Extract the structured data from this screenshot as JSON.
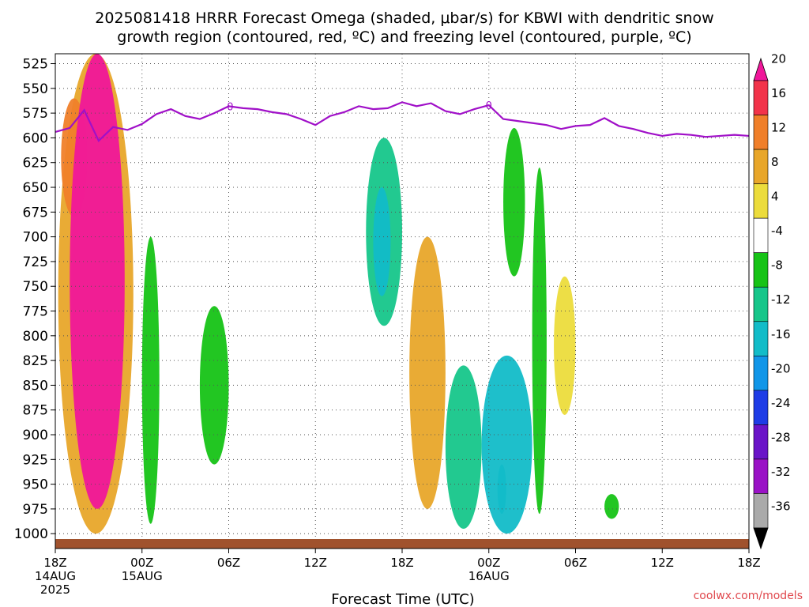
{
  "chart_data": {
    "type": "heatmap",
    "title": [
      "2025081418 HRRR Forecast Omega (shaded, μbar/s) for KBWI with dendritic snow",
      "growth region (contoured, red, ºC) and freezing level (contoured, purple, ºC)"
    ],
    "xlabel": "Forecast Time (UTC)",
    "ylabel": "",
    "credit": "coolwx.com/models",
    "x_ticks": [
      {
        "hour": 0,
        "lines": [
          "18Z",
          "14AUG",
          "2025"
        ]
      },
      {
        "hour": 6,
        "lines": [
          "00Z",
          "15AUG"
        ]
      },
      {
        "hour": 12,
        "lines": [
          "06Z"
        ]
      },
      {
        "hour": 18,
        "lines": [
          "12Z"
        ]
      },
      {
        "hour": 24,
        "lines": [
          "18Z"
        ]
      },
      {
        "hour": 30,
        "lines": [
          "00Z",
          "16AUG"
        ]
      },
      {
        "hour": 36,
        "lines": [
          "06Z"
        ]
      },
      {
        "hour": 42,
        "lines": [
          "12Z"
        ]
      },
      {
        "hour": 48,
        "lines": [
          "18Z"
        ]
      }
    ],
    "xlim": [
      0,
      48
    ],
    "y_ticks": [
      525,
      550,
      575,
      600,
      625,
      650,
      675,
      700,
      725,
      750,
      775,
      800,
      825,
      850,
      875,
      900,
      925,
      950,
      975,
      1000
    ],
    "ylim": [
      1015,
      515
    ],
    "grid": true,
    "colorbar": {
      "labels": [
        "20",
        "16",
        "12",
        "8",
        "4",
        "-4",
        "-8",
        "-12",
        "-16",
        "-20",
        "-24",
        "-28",
        "-32",
        "-36"
      ],
      "colors": [
        "#f0169a",
        "#f2334a",
        "#f07f2a",
        "#e8a62a",
        "#ecdc3c",
        "#ffffff",
        "#16c316",
        "#16c68a",
        "#12bcc8",
        "#1196e8",
        "#1e3ce6",
        "#6a14c8",
        "#9a12c6",
        "#aaaaaa",
        "#000000"
      ]
    },
    "freezing_level": {
      "label": "0",
      "color": "#a010c8",
      "points": [
        [
          0,
          594
        ],
        [
          1,
          590
        ],
        [
          2,
          572
        ],
        [
          3,
          603
        ],
        [
          4,
          589
        ],
        [
          5,
          592
        ],
        [
          6,
          586
        ],
        [
          7,
          576
        ],
        [
          8,
          571
        ],
        [
          9,
          578
        ],
        [
          10,
          581
        ],
        [
          11,
          575
        ],
        [
          12,
          568
        ],
        [
          13,
          570
        ],
        [
          14,
          571
        ],
        [
          15,
          574
        ],
        [
          16,
          576
        ],
        [
          17,
          581
        ],
        [
          18,
          587
        ],
        [
          19,
          578
        ],
        [
          20,
          574
        ],
        [
          21,
          568
        ],
        [
          22,
          571
        ],
        [
          23,
          570
        ],
        [
          24,
          564
        ],
        [
          25,
          568
        ],
        [
          26,
          565
        ],
        [
          27,
          573
        ],
        [
          28,
          576
        ],
        [
          29,
          571
        ],
        [
          30,
          567
        ],
        [
          30.5,
          574
        ],
        [
          31,
          581
        ],
        [
          32,
          583
        ],
        [
          33,
          585
        ],
        [
          34,
          587
        ],
        [
          35,
          591
        ],
        [
          36,
          588
        ],
        [
          37,
          587
        ],
        [
          38,
          580
        ],
        [
          39,
          588
        ],
        [
          40,
          591
        ],
        [
          41,
          595
        ],
        [
          42,
          598
        ],
        [
          43,
          596
        ],
        [
          44,
          597
        ],
        [
          45,
          599
        ],
        [
          46,
          598
        ],
        [
          47,
          597
        ],
        [
          48,
          598
        ]
      ],
      "marker_hours": [
        12.1,
        30
      ]
    },
    "omega_features": [
      {
        "level": 20,
        "x0": 1.0,
        "x1": 4.8,
        "p_top": 515,
        "p_bot": 975,
        "value": 20
      },
      {
        "level": 12,
        "x0": 0.4,
        "x1": 2.2,
        "p_top": 560,
        "p_bot": 680,
        "value": 12
      },
      {
        "level": 4,
        "x0": 0.2,
        "x1": 5.4,
        "p_top": 515,
        "p_bot": 1000,
        "value": 8
      },
      {
        "level": -4,
        "x0": 6.0,
        "x1": 7.2,
        "p_top": 700,
        "p_bot": 990,
        "value": -6
      },
      {
        "level": -4,
        "x0": 10.0,
        "x1": 12.0,
        "p_top": 770,
        "p_bot": 930,
        "value": -6
      },
      {
        "level": -4,
        "x0": 21.5,
        "x1": 24.0,
        "p_top": 600,
        "p_bot": 790,
        "value": -10
      },
      {
        "level": -8,
        "x0": 22.0,
        "x1": 23.2,
        "p_top": 650,
        "p_bot": 760,
        "value": -14
      },
      {
        "level": 4,
        "x0": 24.5,
        "x1": 27.0,
        "p_top": 700,
        "p_bot": 975,
        "value": 10
      },
      {
        "level": -4,
        "x0": 27.0,
        "x1": 29.5,
        "p_top": 830,
        "p_bot": 995,
        "value": -10
      },
      {
        "level": -4,
        "x0": 29.5,
        "x1": 33.0,
        "p_top": 820,
        "p_bot": 1000,
        "value": -14
      },
      {
        "level": -16,
        "x0": 30.6,
        "x1": 31.2,
        "p_top": 930,
        "p_bot": 980,
        "value": -16
      },
      {
        "level": -4,
        "x0": 31.0,
        "x1": 32.5,
        "p_top": 590,
        "p_bot": 740,
        "value": -6
      },
      {
        "level": -4,
        "x0": 33.0,
        "x1": 34.0,
        "p_top": 630,
        "p_bot": 980,
        "value": -8
      },
      {
        "level": 4,
        "x0": 34.5,
        "x1": 36.0,
        "p_top": 740,
        "p_bot": 880,
        "value": 6
      },
      {
        "level": -4,
        "x0": 38.0,
        "x1": 39.0,
        "p_top": 960,
        "p_bot": 985,
        "value": -6
      }
    ],
    "terrain_color": "#a0522d"
  }
}
